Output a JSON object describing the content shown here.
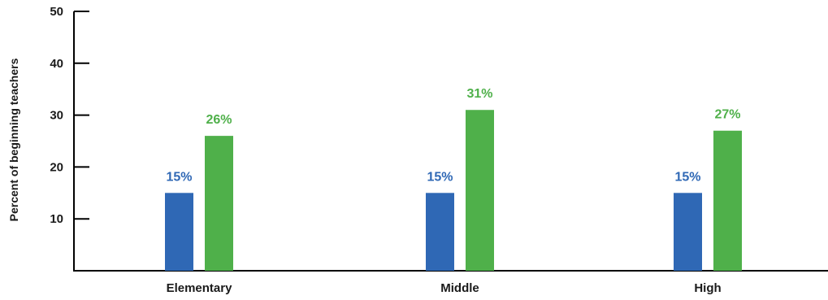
{
  "chart_data": {
    "type": "bar",
    "title": "",
    "xlabel": "",
    "ylabel": "Percent of beginning teachers",
    "ylim": [
      0,
      50
    ],
    "yticks": [
      10,
      20,
      30,
      40,
      50
    ],
    "grid": false,
    "categories": [
      "Elementary",
      "Middle",
      "High"
    ],
    "series": [
      {
        "values": [
          15,
          15,
          15
        ],
        "labels": [
          "15%",
          "15%",
          "15%"
        ],
        "color": "#2f68b5"
      },
      {
        "values": [
          26,
          31,
          27
        ],
        "labels": [
          "26%",
          "31%",
          "27%"
        ],
        "color": "#4fb04a"
      }
    ]
  }
}
